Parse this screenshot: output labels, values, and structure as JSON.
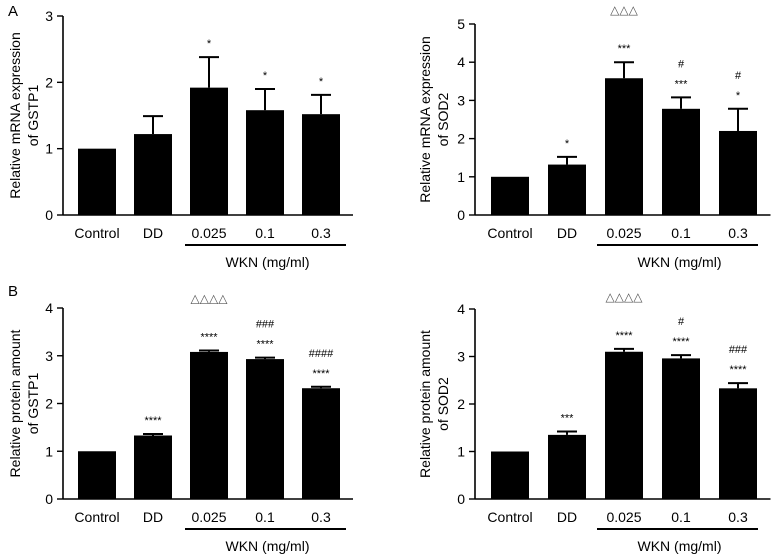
{
  "panel_labels": [
    "A",
    "B"
  ],
  "chart_data": [
    {
      "type": "bar",
      "panel": "A",
      "title": "",
      "ylabel_lines": [
        "Relative mRNA expression",
        "of GSTP1"
      ],
      "categories": [
        "Control",
        "DD",
        "0.025",
        "0.1",
        "0.3"
      ],
      "values": [
        1.0,
        1.22,
        1.92,
        1.58,
        1.52
      ],
      "errors": [
        0.0,
        0.27,
        0.46,
        0.32,
        0.29
      ],
      "ylim": [
        0,
        3
      ],
      "yticks": [
        "0",
        "1",
        "2",
        "3"
      ],
      "group_label": "WKN (mg/ml)",
      "annotations": [
        [
          "",
          "",
          "",
          "",
          ""
        ],
        [
          "",
          "",
          "",
          "",
          ""
        ],
        [
          "",
          "",
          "*",
          "*",
          "*"
        ]
      ]
    },
    {
      "type": "bar",
      "panel": "A",
      "title": "",
      "ylabel_lines": [
        "Relative mRNA expression",
        "of SOD2"
      ],
      "categories": [
        "Control",
        "DD",
        "0.025",
        "0.1",
        "0.3"
      ],
      "values": [
        1.0,
        1.32,
        3.58,
        2.78,
        2.2
      ],
      "errors": [
        0.0,
        0.2,
        0.42,
        0.3,
        0.58
      ],
      "ylim": [
        0,
        5
      ],
      "yticks": [
        "0",
        "1",
        "2",
        "3",
        "4",
        "5"
      ],
      "group_label": "WKN (mg/ml)",
      "annotations": [
        [
          "",
          "",
          "△△△",
          "",
          ""
        ],
        [
          "",
          "",
          "",
          "#",
          "#"
        ],
        [
          "",
          "*",
          "***",
          "***",
          "*"
        ]
      ]
    },
    {
      "type": "bar",
      "panel": "B",
      "title": "",
      "ylabel_lines": [
        "Relative protein amount",
        "of GSTP1"
      ],
      "categories": [
        "Control",
        "DD",
        "0.025",
        "0.1",
        "0.3"
      ],
      "values": [
        1.0,
        1.33,
        3.08,
        2.93,
        2.32
      ],
      "errors": [
        0.0,
        0.03,
        0.03,
        0.03,
        0.03
      ],
      "ylim": [
        0,
        4
      ],
      "yticks": [
        "0",
        "1",
        "2",
        "3",
        "4"
      ],
      "group_label": "WKN (mg/ml)",
      "annotations": [
        [
          "",
          "",
          "△△△△",
          "",
          ""
        ],
        [
          "",
          "",
          "",
          "###",
          "####"
        ],
        [
          "",
          "****",
          "****",
          "****",
          "****"
        ]
      ]
    },
    {
      "type": "bar",
      "panel": "B",
      "title": "",
      "ylabel_lines": [
        "Relative protein amount",
        "of SOD2"
      ],
      "categories": [
        "Control",
        "DD",
        "0.025",
        "0.1",
        "0.3"
      ],
      "values": [
        1.0,
        1.35,
        3.1,
        2.96,
        2.33
      ],
      "errors": [
        0.0,
        0.07,
        0.06,
        0.07,
        0.11
      ],
      "ylim": [
        0,
        4
      ],
      "yticks": [
        "0",
        "1",
        "2",
        "3",
        "4"
      ],
      "group_label": "WKN (mg/ml)",
      "annotations": [
        [
          "",
          "",
          "△△△△",
          "",
          ""
        ],
        [
          "",
          "",
          "",
          "#",
          "###"
        ],
        [
          "",
          "***",
          "****",
          "****",
          "****"
        ]
      ]
    }
  ]
}
